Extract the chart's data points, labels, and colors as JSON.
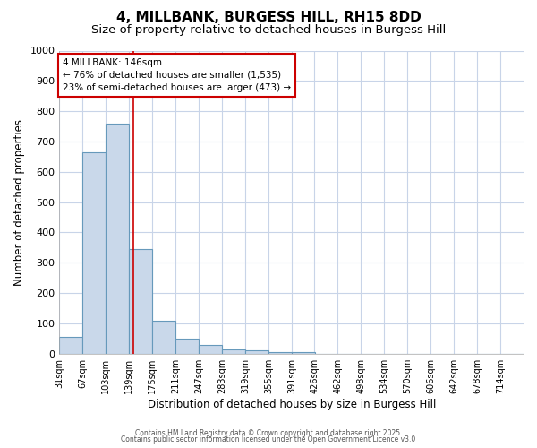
{
  "title1": "4, MILLBANK, BURGESS HILL, RH15 8DD",
  "title2": "Size of property relative to detached houses in Burgess Hill",
  "xlabel": "Distribution of detached houses by size in Burgess Hill",
  "ylabel": "Number of detached properties",
  "bin_edges": [
    31,
    67,
    103,
    139,
    175,
    211,
    247,
    283,
    319,
    355,
    391,
    426,
    462,
    498,
    534,
    570,
    606,
    642,
    678,
    714,
    750
  ],
  "bar_heights": [
    55,
    665,
    760,
    345,
    110,
    50,
    30,
    15,
    10,
    5,
    5,
    0,
    0,
    0,
    0,
    0,
    0,
    0,
    0,
    0
  ],
  "bar_color": "#c9d8ea",
  "bar_edgecolor": "#6699bb",
  "red_line_x": 146,
  "annotation_title": "4 MILLBANK: 146sqm",
  "annotation_line1": "← 76% of detached houses are smaller (1,535)",
  "annotation_line2": "23% of semi-detached houses are larger (473) →",
  "annotation_box_color": "#cc0000",
  "ylim": [
    0,
    1000
  ],
  "yticks": [
    0,
    100,
    200,
    300,
    400,
    500,
    600,
    700,
    800,
    900,
    1000
  ],
  "footer1": "Contains HM Land Registry data © Crown copyright and database right 2025.",
  "footer2": "Contains public sector information licensed under the Open Government Licence v3.0",
  "plot_bg_color": "#ffffff",
  "fig_bg_color": "#ffffff",
  "grid_color": "#c8d4e8",
  "title_fontsize": 11,
  "subtitle_fontsize": 9.5,
  "tick_label_fontsize": 7,
  "axis_label_fontsize": 8.5,
  "footer_fontsize": 5.5
}
